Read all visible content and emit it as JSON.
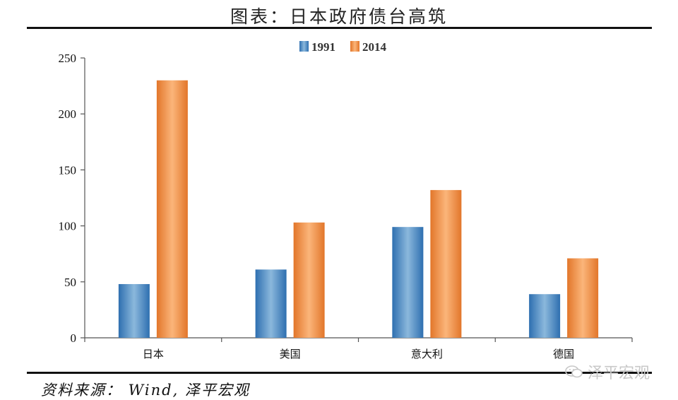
{
  "title": "图表：日本政府债台高筑",
  "source": "资料来源： Wind, 泽平宏观",
  "watermark": "泽平宏观",
  "colors": {
    "series_1991": "#3a7fc2",
    "series_2014": "#f08a3a"
  },
  "chart_data": {
    "type": "bar",
    "categories": [
      "日本",
      "美国",
      "意大利",
      "德国"
    ],
    "series": [
      {
        "name": "1991",
        "values": [
          48,
          61,
          99,
          39
        ]
      },
      {
        "name": "2014",
        "values": [
          230,
          103,
          132,
          71
        ]
      }
    ],
    "ylim": [
      0,
      250
    ],
    "yticks": [
      0,
      50,
      100,
      150,
      200,
      250
    ],
    "legend": "top-center",
    "grid": false
  }
}
